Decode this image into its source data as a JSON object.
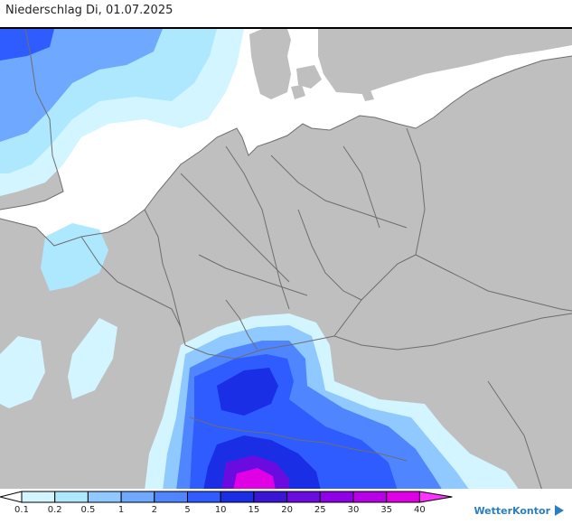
{
  "title": "Niederschlag Di, 01.07.2025",
  "map": {
    "land_color": "#bfbfbf",
    "sea_color": "#ffffff",
    "border_color": "#6e6e6e"
  },
  "legend": {
    "classes": [
      {
        "from": "",
        "to": "0.1",
        "color": "#ffffff"
      },
      {
        "from": "0.1",
        "to": "0.2",
        "color": "#d2f5ff"
      },
      {
        "from": "0.2",
        "to": "0.5",
        "color": "#aee8ff"
      },
      {
        "from": "0.5",
        "to": "1",
        "color": "#8fc9ff"
      },
      {
        "from": "1",
        "to": "2",
        "color": "#6fa8ff"
      },
      {
        "from": "2",
        "to": "5",
        "color": "#4f86ff"
      },
      {
        "from": "5",
        "to": "10",
        "color": "#2e5cff"
      },
      {
        "from": "10",
        "to": "15",
        "color": "#1a2ee6"
      },
      {
        "from": "15",
        "to": "20",
        "color": "#3a15d6"
      },
      {
        "from": "20",
        "to": "25",
        "color": "#6a0ce0"
      },
      {
        "from": "25",
        "to": "30",
        "color": "#8f00e6"
      },
      {
        "from": "30",
        "to": "35",
        "color": "#b800e6"
      },
      {
        "from": "35",
        "to": "40",
        "color": "#e000e6"
      },
      {
        "from": "40",
        "to": "",
        "color": "#ff33ff"
      }
    ],
    "tick_labels": [
      "0.1",
      "0.2",
      "0.5",
      "1",
      "2",
      "5",
      "10",
      "15",
      "20",
      "25",
      "30",
      "35",
      "40"
    ]
  },
  "brand": {
    "name": "WetterKontor",
    "icon": "wetterkontor-logo-icon"
  }
}
